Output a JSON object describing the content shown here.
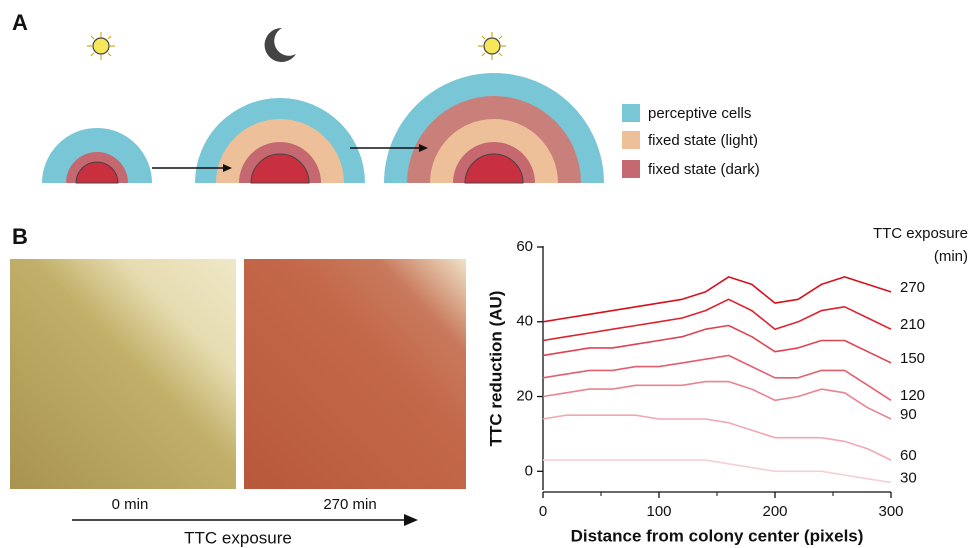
{
  "panel_a": {
    "label": "A",
    "legend": [
      "perceptive cells",
      "fixed state (light)",
      "fixed state (dark)"
    ]
  },
  "panel_b": {
    "label": "B",
    "image_labels": [
      "0 min",
      "270 min"
    ],
    "arrow_label": "TTC exposure"
  },
  "chart_data": {
    "type": "line",
    "xlabel": "Distance from colony center (pixels)",
    "ylabel": "TTC reduction (AU)",
    "legend_title": [
      "TTC exposure",
      "(min)"
    ],
    "x": [
      0,
      20,
      40,
      60,
      80,
      100,
      120,
      140,
      160,
      180,
      200,
      220,
      240,
      260,
      280,
      300
    ],
    "series": [
      {
        "name": "270",
        "color": "#d7101c",
        "values": [
          40,
          41,
          42,
          43,
          44,
          45,
          46,
          48,
          52,
          50,
          45,
          46,
          50,
          52,
          50,
          48
        ]
      },
      {
        "name": "210",
        "color": "#dc2430",
        "values": [
          35,
          36,
          37,
          38,
          39,
          40,
          41,
          43,
          46,
          43,
          38,
          40,
          43,
          44,
          41,
          38
        ]
      },
      {
        "name": "150",
        "color": "#e04352",
        "values": [
          31,
          32,
          33,
          33,
          34,
          35,
          36,
          38,
          39,
          36,
          32,
          33,
          35,
          35,
          32,
          29
        ]
      },
      {
        "name": "120",
        "color": "#e45f6e",
        "values": [
          25,
          26,
          27,
          27,
          28,
          28,
          29,
          30,
          31,
          28,
          25,
          25,
          27,
          27,
          23,
          19
        ]
      },
      {
        "name": "90",
        "color": "#ea8390",
        "values": [
          20,
          21,
          22,
          22,
          23,
          23,
          23,
          24,
          24,
          22,
          19,
          20,
          22,
          21,
          17,
          14
        ]
      },
      {
        "name": "60",
        "color": "#f0a8b2",
        "values": [
          14,
          15,
          15,
          15,
          15,
          14,
          14,
          14,
          13,
          11,
          9,
          9,
          9,
          8,
          6,
          3
        ]
      },
      {
        "name": "30",
        "color": "#f6cfd5",
        "values": [
          3,
          3,
          3,
          3,
          3,
          3,
          3,
          3,
          2,
          1,
          0,
          0,
          0,
          -1,
          -2,
          -3
        ]
      }
    ],
    "xlim": [
      0,
      300
    ],
    "xticks": [
      0,
      100,
      200,
      300
    ],
    "xminorticks": [
      50,
      150,
      250
    ],
    "ylim": [
      -5,
      60
    ],
    "yticks": [
      0,
      20,
      40,
      60
    ]
  }
}
